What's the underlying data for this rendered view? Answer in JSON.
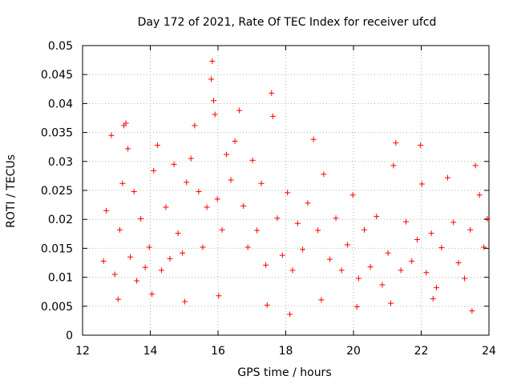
{
  "chart_data": {
    "type": "scatter",
    "title": "Day 172 of 2021, Rate Of TEC Index for receiver ufcd",
    "xlabel": "GPS time / hours",
    "ylabel": "ROTI / TECUs",
    "xlim": [
      12,
      24
    ],
    "ylim": [
      0,
      0.05
    ],
    "x_ticks": [
      "12",
      "14",
      "16",
      "18",
      "20",
      "22",
      "24"
    ],
    "y_ticks": [
      "0",
      "0.005",
      "0.01",
      "0.015",
      "0.02",
      "0.025",
      "0.03",
      "0.035",
      "0.04",
      "0.045",
      "0.05"
    ],
    "grid": true,
    "marker": "+",
    "series": [
      {
        "name": "ROTI",
        "color": "#ff0000",
        "points": [
          [
            12.62,
            0.0128
          ],
          [
            12.7,
            0.0215
          ],
          [
            12.85,
            0.0345
          ],
          [
            12.95,
            0.0105
          ],
          [
            13.1,
            0.0182
          ],
          [
            13.18,
            0.0262
          ],
          [
            13.22,
            0.0362
          ],
          [
            13.28,
            0.0366
          ],
          [
            13.34,
            0.0322
          ],
          [
            13.41,
            0.0135
          ],
          [
            13.52,
            0.0248
          ],
          [
            13.6,
            0.0094
          ],
          [
            13.72,
            0.0201
          ],
          [
            13.85,
            0.0117
          ],
          [
            13.97,
            0.0152
          ],
          [
            14.1,
            0.0284
          ],
          [
            14.21,
            0.0328
          ],
          [
            14.33,
            0.0112
          ],
          [
            14.46,
            0.0221
          ],
          [
            14.58,
            0.0132
          ],
          [
            14.7,
            0.0295
          ],
          [
            14.82,
            0.0176
          ],
          [
            14.95,
            0.0142
          ],
          [
            15.07,
            0.0264
          ],
          [
            15.2,
            0.0305
          ],
          [
            15.31,
            0.0362
          ],
          [
            15.43,
            0.0248
          ],
          [
            15.55,
            0.0152
          ],
          [
            15.67,
            0.0221
          ],
          [
            15.8,
            0.0442
          ],
          [
            15.83,
            0.0473
          ],
          [
            15.87,
            0.0405
          ],
          [
            15.91,
            0.0381
          ],
          [
            15.98,
            0.0235
          ],
          [
            16.12,
            0.0182
          ],
          [
            16.25,
            0.0312
          ],
          [
            16.38,
            0.0268
          ],
          [
            16.5,
            0.0335
          ],
          [
            16.63,
            0.0388
          ],
          [
            16.75,
            0.0223
          ],
          [
            16.88,
            0.0152
          ],
          [
            17.02,
            0.0302
          ],
          [
            17.15,
            0.0181
          ],
          [
            17.28,
            0.0262
          ],
          [
            17.41,
            0.0121
          ],
          [
            17.58,
            0.0418
          ],
          [
            17.62,
            0.0378
          ],
          [
            17.75,
            0.0202
          ],
          [
            17.9,
            0.0138
          ],
          [
            18.05,
            0.0246
          ],
          [
            18.2,
            0.0112
          ],
          [
            18.35,
            0.0193
          ],
          [
            18.5,
            0.0148
          ],
          [
            18.65,
            0.0228
          ],
          [
            18.82,
            0.0338
          ],
          [
            18.95,
            0.0181
          ],
          [
            19.12,
            0.0278
          ],
          [
            19.3,
            0.0131
          ],
          [
            19.48,
            0.0202
          ],
          [
            19.65,
            0.0112
          ],
          [
            19.82,
            0.0156
          ],
          [
            19.98,
            0.0242
          ],
          [
            20.15,
            0.0098
          ],
          [
            20.32,
            0.0182
          ],
          [
            20.5,
            0.0118
          ],
          [
            20.68,
            0.0205
          ],
          [
            20.85,
            0.0087
          ],
          [
            21.02,
            0.0142
          ],
          [
            21.18,
            0.0293
          ],
          [
            21.25,
            0.0332
          ],
          [
            21.4,
            0.0112
          ],
          [
            21.55,
            0.0196
          ],
          [
            21.72,
            0.0128
          ],
          [
            21.88,
            0.0165
          ],
          [
            21.98,
            0.0328
          ],
          [
            22.02,
            0.0261
          ],
          [
            22.15,
            0.0108
          ],
          [
            22.3,
            0.0176
          ],
          [
            22.45,
            0.0082
          ],
          [
            22.6,
            0.0151
          ],
          [
            22.78,
            0.0272
          ],
          [
            22.95,
            0.0195
          ],
          [
            23.1,
            0.0125
          ],
          [
            23.28,
            0.0098
          ],
          [
            23.45,
            0.0182
          ],
          [
            23.6,
            0.0293
          ],
          [
            23.72,
            0.0242
          ],
          [
            23.85,
            0.0152
          ],
          [
            23.95,
            0.0201
          ],
          [
            13.05,
            0.0062
          ],
          [
            14.05,
            0.0071
          ],
          [
            15.02,
            0.0058
          ],
          [
            16.02,
            0.0068
          ],
          [
            17.45,
            0.0052
          ],
          [
            18.12,
            0.0036
          ],
          [
            19.05,
            0.0061
          ],
          [
            20.1,
            0.0049
          ],
          [
            21.1,
            0.0055
          ],
          [
            22.35,
            0.0063
          ],
          [
            23.5,
            0.0042
          ]
        ]
      }
    ]
  }
}
